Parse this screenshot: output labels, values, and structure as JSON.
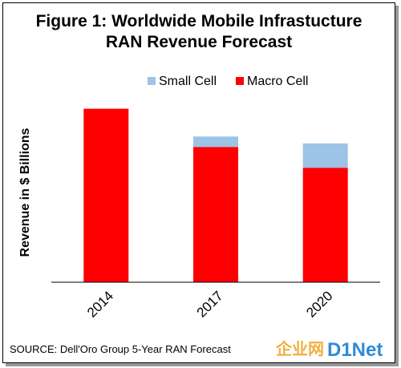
{
  "chart_data": {
    "type": "bar",
    "stacked": true,
    "title": "Figure 1: Worldwide Mobile Infrastucture RAN Revenue Forecast",
    "title_lines": [
      "Figure 1: Worldwide Mobile Infrastucture",
      "RAN Revenue Forecast"
    ],
    "ylabel": "Revenue in $ Billions",
    "xlabel": "",
    "categories": [
      "2014",
      "2017",
      "2020"
    ],
    "series": [
      {
        "name": "Macro Cell",
        "color": "#ff0000",
        "values": [
          100,
          78,
          66
        ]
      },
      {
        "name": "Small Cell",
        "color": "#9dc3e6",
        "values": [
          0,
          6,
          14
        ]
      }
    ],
    "legend_order": [
      "Small Cell",
      "Macro Cell"
    ],
    "legend_position": "top",
    "ylim": [
      0,
      110
    ],
    "y_ticks_shown": false,
    "grid": false,
    "x_tick_rotation": -45
  },
  "source": "SOURCE:  Dell'Oro Group 5-Year RAN Forecast",
  "watermark": {
    "text_part1": "企业网",
    "text_part2": "D1Net",
    "color1": "#f0a020",
    "color2": "#1a7fd0"
  }
}
